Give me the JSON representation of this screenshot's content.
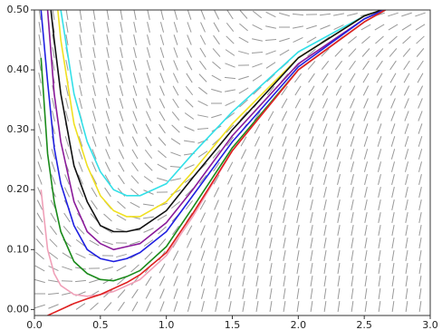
{
  "chart_data": {
    "type": "line",
    "x": [
      0.05,
      0.1,
      0.15,
      0.2,
      0.3,
      0.4,
      0.5,
      0.6,
      0.7,
      0.8,
      1.0,
      1.2,
      1.5,
      2.0,
      2.5,
      2.7
    ],
    "series": [
      {
        "color": "#33e0e8",
        "values": [
          null,
          null,
          0.7,
          0.5,
          0.36,
          0.28,
          0.23,
          0.2,
          0.19,
          0.19,
          0.21,
          0.26,
          0.33,
          0.43,
          0.49,
          0.505
        ]
      },
      {
        "color": "#f0e020",
        "values": [
          null,
          null,
          0.56,
          0.45,
          0.31,
          0.24,
          0.19,
          0.165,
          0.155,
          0.155,
          0.18,
          0.23,
          0.31,
          0.42,
          0.49,
          0.505
        ]
      },
      {
        "color": "#111111",
        "values": [
          null,
          0.55,
          0.45,
          0.36,
          0.24,
          0.18,
          0.14,
          0.13,
          0.13,
          0.135,
          0.165,
          0.22,
          0.3,
          0.42,
          0.49,
          0.505
        ]
      },
      {
        "color": "#8a1a9a",
        "values": [
          null,
          0.5,
          0.36,
          0.28,
          0.18,
          0.13,
          0.11,
          0.1,
          0.105,
          0.11,
          0.145,
          0.2,
          0.29,
          0.41,
          0.485,
          0.505
        ]
      },
      {
        "color": "#2020e0",
        "values": [
          0.5,
          0.38,
          0.27,
          0.21,
          0.14,
          0.1,
          0.085,
          0.08,
          0.085,
          0.095,
          0.13,
          0.19,
          0.28,
          0.405,
          0.485,
          0.505
        ]
      },
      {
        "color": "#1a8a1a",
        "values": [
          0.42,
          0.26,
          0.18,
          0.13,
          0.08,
          0.06,
          0.05,
          0.048,
          0.055,
          0.065,
          0.105,
          0.17,
          0.27,
          0.4,
          0.48,
          0.505
        ]
      },
      {
        "color": "#f0a0b8",
        "values": [
          0.2,
          0.1,
          0.06,
          0.04,
          0.025,
          0.022,
          0.025,
          0.03,
          0.04,
          0.05,
          0.09,
          0.155,
          0.265,
          0.4,
          0.48,
          0.505
        ]
      },
      {
        "color": "#e02020",
        "values": [
          null,
          -0.01,
          -0.005,
          0.0,
          0.01,
          0.018,
          0.025,
          0.035,
          0.045,
          0.058,
          0.095,
          0.16,
          0.265,
          0.4,
          0.48,
          0.505
        ]
      }
    ],
    "xlim": [
      0,
      3
    ],
    "ylim": [
      -0.01,
      0.5
    ],
    "xticks": [
      {
        "value": 0,
        "label": "0.0"
      },
      0.5,
      {
        "value": 1,
        "label": "1.0"
      },
      1.5,
      {
        "value": 2,
        "label": "2.0"
      },
      2.5,
      {
        "value": 3,
        "label": "3.0"
      }
    ],
    "yticks": [
      {
        "value": 0,
        "label": "0.00"
      },
      {
        "value": 0.1,
        "label": "0.10"
      },
      {
        "value": 0.2,
        "label": "0.20"
      },
      {
        "value": 0.3,
        "label": "0.30"
      },
      {
        "value": 0.4,
        "label": "0.40"
      },
      {
        "value": 0.5,
        "label": "0.50"
      }
    ]
  }
}
